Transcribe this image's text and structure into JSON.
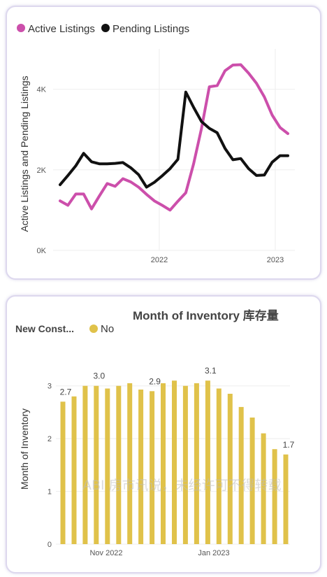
{
  "colors": {
    "active": "#cc4fab",
    "pending": "#111111",
    "bar": "#e0c24a",
    "grid": "#eeeeee"
  },
  "watermark": "ABI 房市讯说，未经许可不得转载",
  "chart_data": [
    {
      "type": "line",
      "title": "",
      "xlabel": "",
      "ylabel": "Active Listings and Pending Listings",
      "ylim": [
        0,
        5000
      ],
      "yticks": [
        "0K",
        "2K",
        "4K"
      ],
      "xticks": [
        "2022",
        "2023"
      ],
      "x_range": [
        "2021-04",
        "2023-03"
      ],
      "legend": "top-left",
      "series": [
        {
          "name": "Active Listings",
          "values": [
            1230,
            1120,
            1400,
            1400,
            1030,
            1350,
            1660,
            1590,
            1780,
            1700,
            1570,
            1390,
            1230,
            1120,
            1000,
            1220,
            1430,
            2150,
            3020,
            4060,
            4090,
            4460,
            4600,
            4610,
            4400,
            4150,
            3810,
            3360,
            3050,
            2900
          ]
        },
        {
          "name": "Pending Listings",
          "values": [
            1630,
            1860,
            2100,
            2410,
            2200,
            2150,
            2150,
            2160,
            2180,
            2050,
            1880,
            1570,
            1690,
            1850,
            2030,
            2260,
            3930,
            3550,
            3200,
            3030,
            2920,
            2530,
            2250,
            2280,
            2030,
            1860,
            1870,
            2190,
            2350,
            2350
          ]
        }
      ]
    },
    {
      "type": "bar",
      "title": "Month of Inventory 库存量",
      "xlabel": "",
      "ylabel": "Month of Inventory",
      "ylim": [
        0,
        3.5
      ],
      "yticks": [
        "0",
        "1",
        "2",
        "3"
      ],
      "xticks": [
        "Nov 2022",
        "Jan 2023"
      ],
      "legend_title": "New Const...",
      "series": [
        {
          "name": "No",
          "values": [
            2.7,
            2.8,
            3.0,
            3.0,
            2.95,
            3.0,
            3.05,
            2.93,
            2.9,
            3.05,
            3.1,
            3.0,
            3.05,
            3.1,
            2.95,
            2.85,
            2.6,
            2.4,
            2.1,
            1.8,
            1.7
          ],
          "labels": [
            "2.7",
            "",
            "",
            "3.0",
            "",
            "",
            "",
            "",
            "2.9",
            "",
            "",
            "",
            "",
            "3.1",
            "",
            "",
            "",
            "",
            "",
            "",
            "1.7"
          ]
        }
      ]
    }
  ]
}
